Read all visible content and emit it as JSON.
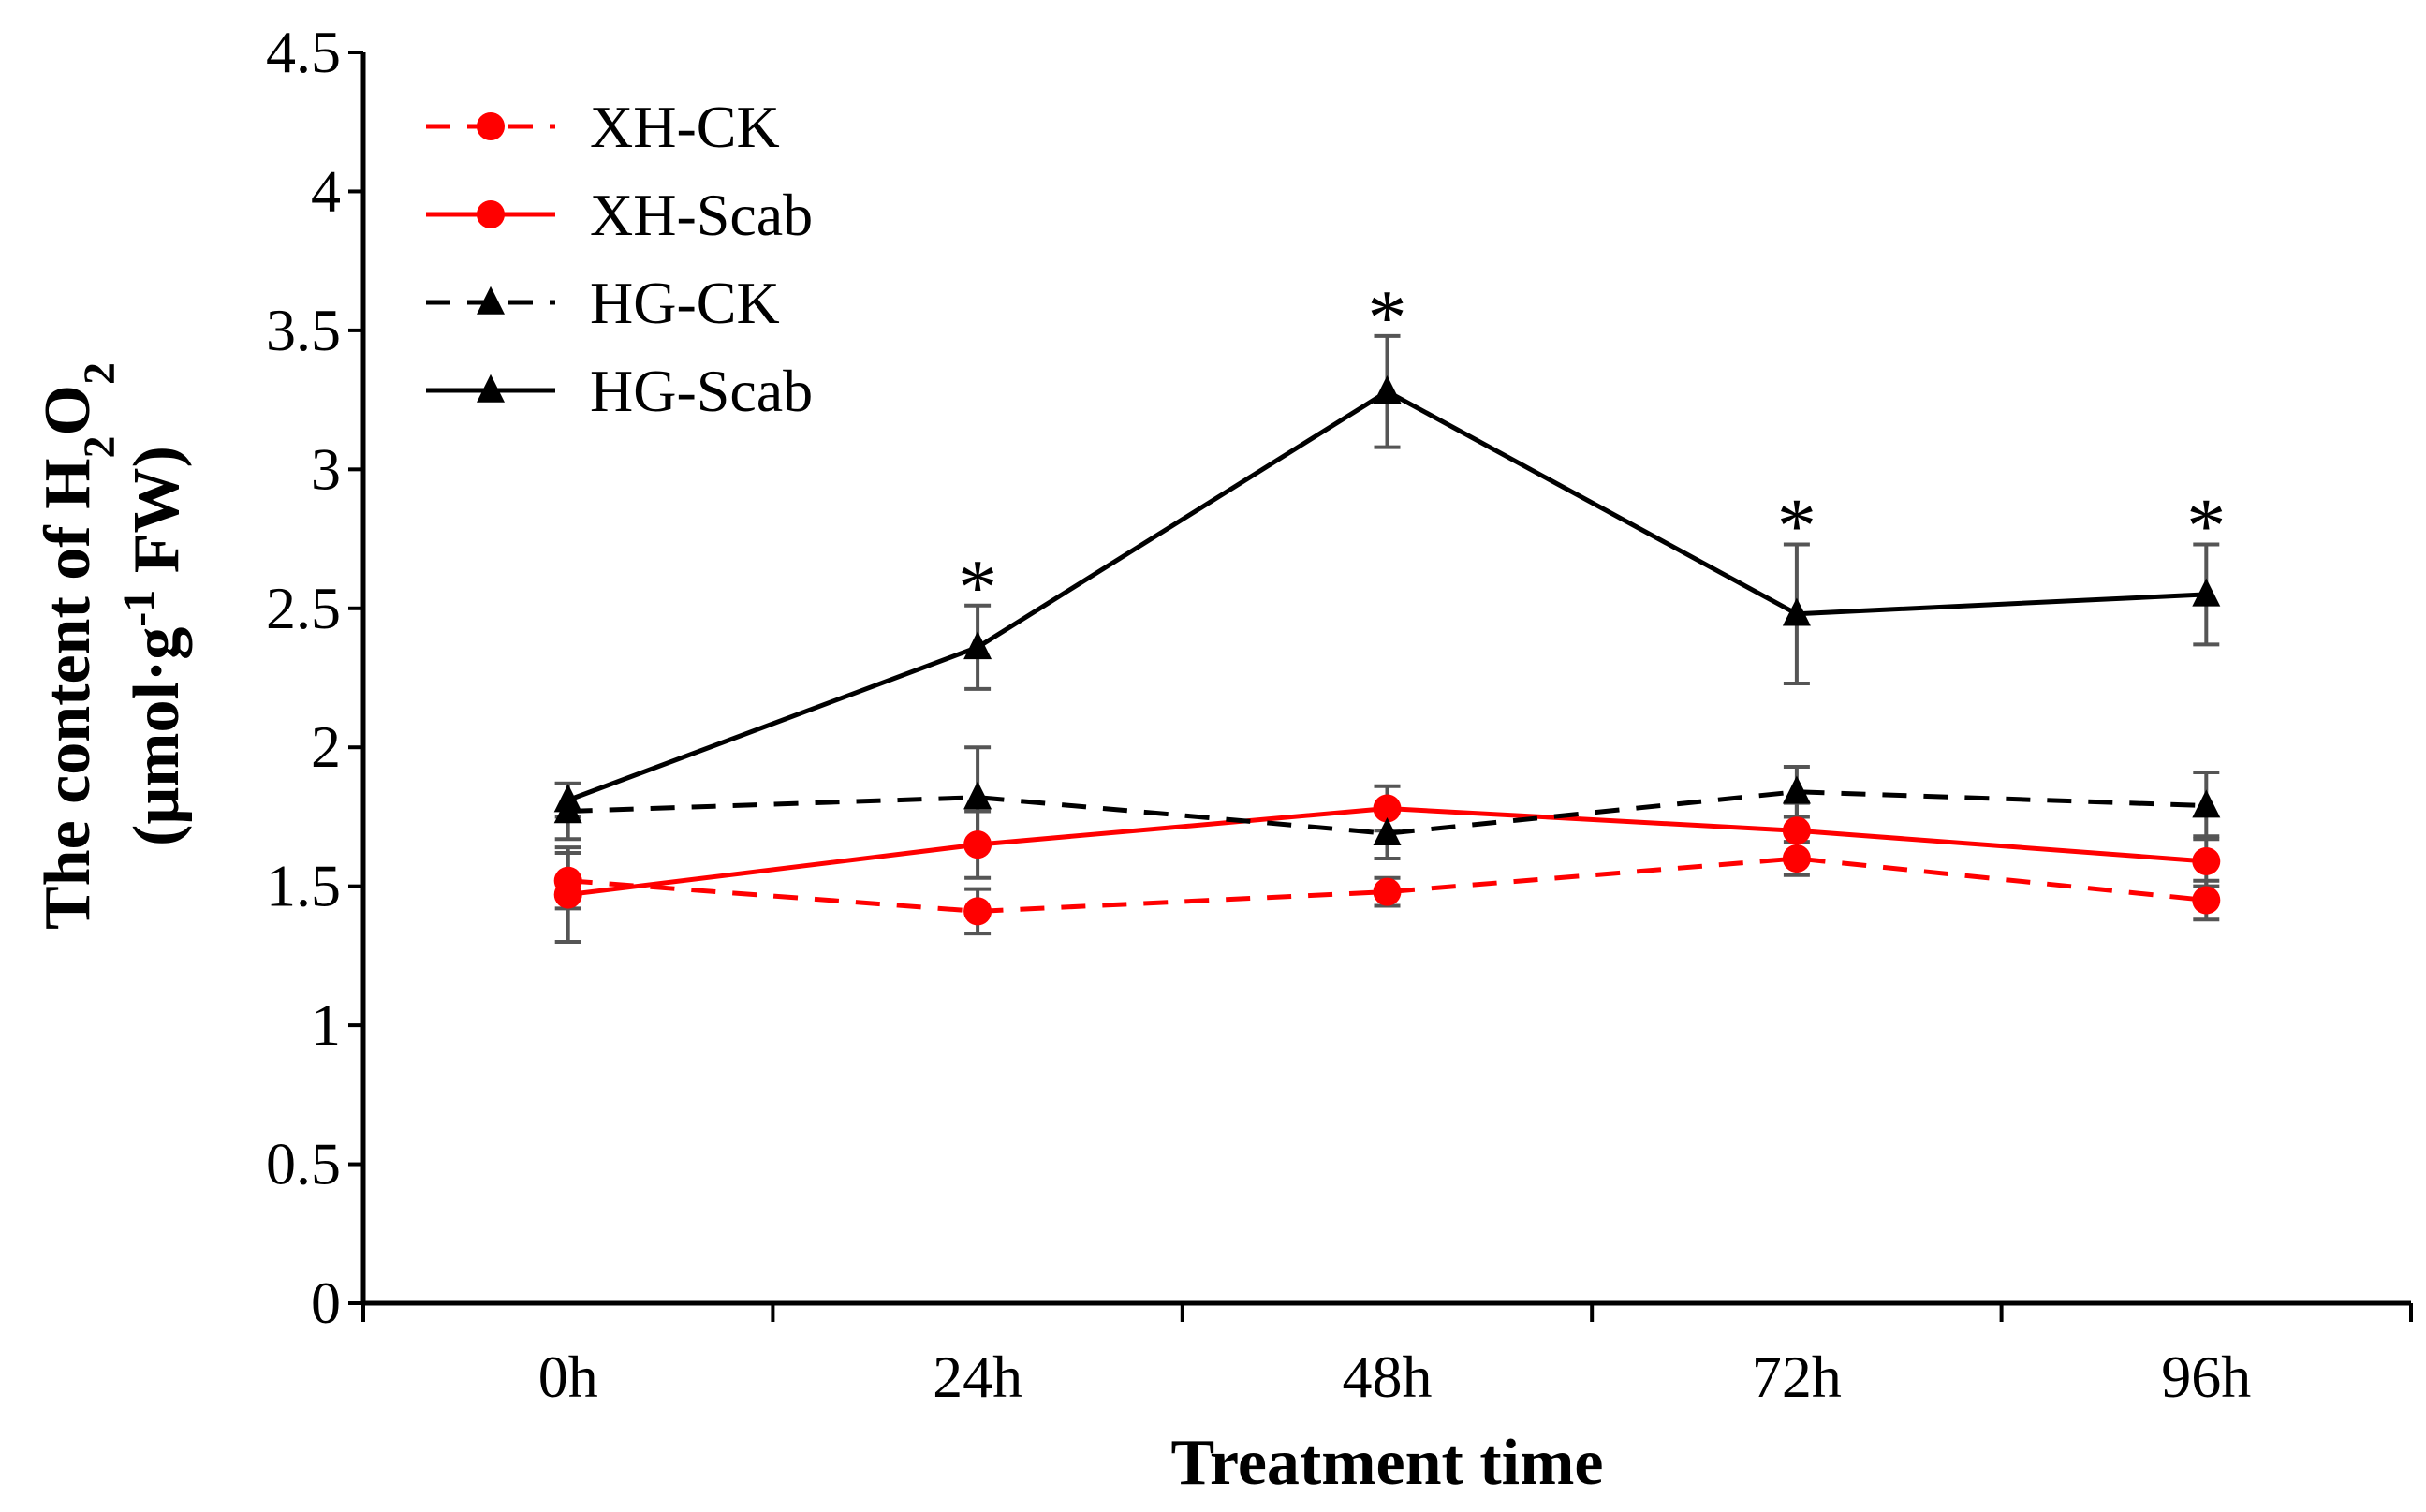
{
  "chart_data": {
    "type": "line",
    "title": "",
    "xlabel": "Treatment time",
    "ylabel_line1_parts": [
      "The content of H",
      "2",
      "O",
      "2"
    ],
    "ylabel_line2_parts": [
      "(μmol·g",
      "-1",
      " FW)"
    ],
    "categories": [
      "0h",
      "24h",
      "48h",
      "72h",
      "96h"
    ],
    "ylim": [
      0,
      4.5
    ],
    "yticks": [
      "0",
      "0.5",
      "1",
      "1.5",
      "2",
      "2.5",
      "3",
      "3.5",
      "4",
      "4.5"
    ],
    "ytick_values": [
      0,
      0.5,
      1,
      1.5,
      2,
      2.5,
      3,
      3.5,
      4,
      4.5
    ],
    "legend_position": "top-left",
    "series": [
      {
        "name": "XH-CK",
        "color": "#ff0000",
        "dashed": true,
        "marker": "circle",
        "values": [
          1.52,
          1.41,
          1.48,
          1.6,
          1.45
        ],
        "errors": [
          0.1,
          0.08,
          0.05,
          0.06,
          0.07
        ]
      },
      {
        "name": "XH-Scab",
        "color": "#ff0000",
        "dashed": false,
        "marker": "circle",
        "values": [
          1.47,
          1.65,
          1.78,
          1.7,
          1.59
        ],
        "errors": [
          0.17,
          0.12,
          0.08,
          0.1,
          0.09
        ]
      },
      {
        "name": "HG-CK",
        "color": "#000000",
        "dashed": true,
        "marker": "triangle",
        "values": [
          1.77,
          1.82,
          1.69,
          1.84,
          1.79
        ],
        "errors": [
          0.1,
          0.18,
          0.09,
          0.09,
          0.12
        ]
      },
      {
        "name": "HG-Scab",
        "color": "#000000",
        "dashed": false,
        "marker": "triangle",
        "values": [
          1.81,
          2.36,
          3.28,
          2.48,
          2.55
        ],
        "errors": [
          0.06,
          0.15,
          0.2,
          0.25,
          0.18
        ]
      }
    ],
    "annotations": [
      {
        "text": "*",
        "category": "24h"
      },
      {
        "text": "*",
        "category": "48h"
      },
      {
        "text": "*",
        "category": "72h"
      },
      {
        "text": "*",
        "category": "96h"
      }
    ]
  }
}
